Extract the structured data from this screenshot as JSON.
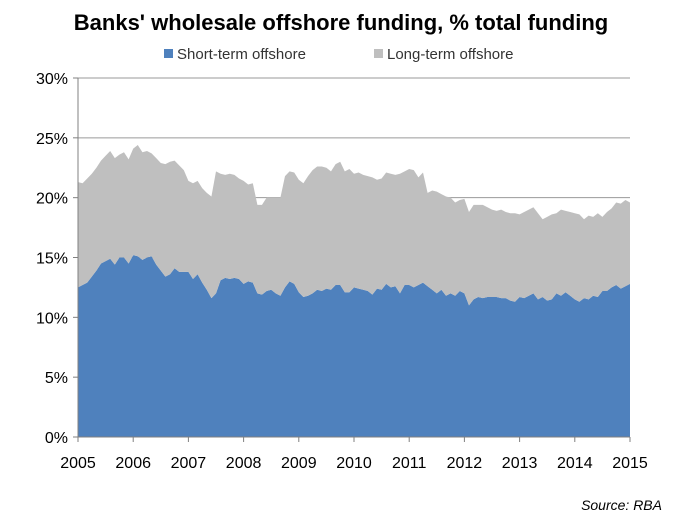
{
  "chart_data": {
    "type": "area",
    "stacked": true,
    "title": "Banks' wholesale offshore funding, % total funding",
    "xlabel": "",
    "ylabel": "",
    "x_tick_labels": [
      "2005",
      "2006",
      "2007",
      "2008",
      "2009",
      "2010",
      "2011",
      "2012",
      "2013",
      "2014",
      "2015"
    ],
    "xlim": [
      2005,
      2015
    ],
    "y_tick_labels": [
      "0%",
      "5%",
      "10%",
      "15%",
      "20%",
      "25%",
      "30%"
    ],
    "ylim": [
      0,
      30
    ],
    "grid": "horizontal",
    "legend_position": "top",
    "source": "Source: RBA",
    "x": [
      2005.0,
      2005.083,
      2005.167,
      2005.25,
      2005.333,
      2005.417,
      2005.5,
      2005.583,
      2005.667,
      2005.75,
      2005.833,
      2005.917,
      2006.0,
      2006.083,
      2006.167,
      2006.25,
      2006.333,
      2006.417,
      2006.5,
      2006.583,
      2006.667,
      2006.75,
      2006.833,
      2006.917,
      2007.0,
      2007.083,
      2007.167,
      2007.25,
      2007.333,
      2007.417,
      2007.5,
      2007.583,
      2007.667,
      2007.75,
      2007.833,
      2007.917,
      2008.0,
      2008.083,
      2008.167,
      2008.25,
      2008.333,
      2008.417,
      2008.5,
      2008.583,
      2008.667,
      2008.75,
      2008.833,
      2008.917,
      2009.0,
      2009.083,
      2009.167,
      2009.25,
      2009.333,
      2009.417,
      2009.5,
      2009.583,
      2009.667,
      2009.75,
      2009.833,
      2009.917,
      2010.0,
      2010.083,
      2010.167,
      2010.25,
      2010.333,
      2010.417,
      2010.5,
      2010.583,
      2010.667,
      2010.75,
      2010.833,
      2010.917,
      2011.0,
      2011.083,
      2011.167,
      2011.25,
      2011.333,
      2011.417,
      2011.5,
      2011.583,
      2011.667,
      2011.75,
      2011.833,
      2011.917,
      2012.0,
      2012.083,
      2012.167,
      2012.25,
      2012.333,
      2012.417,
      2012.5,
      2012.583,
      2012.667,
      2012.75,
      2012.833,
      2012.917,
      2013.0,
      2013.083,
      2013.167,
      2013.25,
      2013.333,
      2013.417,
      2013.5,
      2013.583,
      2013.667,
      2013.75,
      2013.833,
      2013.917,
      2014.0,
      2014.083,
      2014.167,
      2014.25,
      2014.333,
      2014.417,
      2014.5,
      2014.583,
      2014.667,
      2014.75,
      2014.833,
      2014.917,
      2015.0
    ],
    "series": [
      {
        "name": "Short-term offshore",
        "color": "#4f81bd",
        "values": [
          12.5,
          12.7,
          12.9,
          13.4,
          13.9,
          14.5,
          14.7,
          14.9,
          14.4,
          15.0,
          15.0,
          14.5,
          15.2,
          15.1,
          14.8,
          15.0,
          15.1,
          14.4,
          13.9,
          13.4,
          13.6,
          14.1,
          13.8,
          13.8,
          13.8,
          13.2,
          13.6,
          12.9,
          12.3,
          11.6,
          12.0,
          13.1,
          13.3,
          13.2,
          13.3,
          13.2,
          12.8,
          13.0,
          12.9,
          12.0,
          11.9,
          12.2,
          12.3,
          12.0,
          11.8,
          12.5,
          13.0,
          12.8,
          12.1,
          11.7,
          11.8,
          12.0,
          12.3,
          12.2,
          12.4,
          12.3,
          12.7,
          12.7,
          12.1,
          12.1,
          12.5,
          12.4,
          12.3,
          12.2,
          11.9,
          12.4,
          12.3,
          12.8,
          12.5,
          12.6,
          12.0,
          12.7,
          12.7,
          12.5,
          12.7,
          12.9,
          12.6,
          12.3,
          12.0,
          12.3,
          11.8,
          12.0,
          11.8,
          12.2,
          12.0,
          11.0,
          11.5,
          11.7,
          11.6,
          11.7,
          11.7,
          11.7,
          11.6,
          11.6,
          11.4,
          11.3,
          11.7,
          11.6,
          11.8,
          12.0,
          11.5,
          11.7,
          11.4,
          11.5,
          12.0,
          11.8,
          12.1,
          11.8,
          11.5,
          11.3,
          11.6,
          11.5,
          11.8,
          11.7,
          12.2,
          12.2,
          12.5,
          12.7,
          12.4,
          12.6,
          12.8
        ],
        "total_visible_as_stack_top": true
      },
      {
        "name": "Long-term offshore",
        "color": "#bfbfbf",
        "values": [
          8.8,
          8.5,
          8.7,
          8.6,
          8.6,
          8.6,
          8.8,
          9.0,
          8.9,
          8.6,
          8.8,
          8.7,
          8.9,
          9.3,
          9.0,
          8.9,
          8.6,
          8.9,
          9.0,
          9.4,
          9.4,
          9.0,
          8.9,
          8.5,
          7.6,
          8.0,
          7.8,
          7.9,
          8.1,
          8.5,
          10.2,
          8.9,
          8.6,
          8.8,
          8.6,
          8.4,
          8.6,
          8.1,
          8.3,
          7.4,
          7.5,
          7.8,
          7.7,
          8.0,
          8.2,
          9.3,
          9.2,
          9.3,
          9.4,
          9.5,
          10.0,
          10.3,
          10.3,
          10.4,
          10.1,
          9.9,
          10.1,
          10.3,
          10.1,
          10.3,
          9.5,
          9.7,
          9.6,
          9.6,
          9.8,
          9.1,
          9.3,
          9.3,
          9.5,
          9.3,
          10.0,
          9.5,
          9.7,
          9.8,
          9.0,
          9.2,
          7.8,
          8.3,
          8.5,
          8.0,
          8.3,
          8.0,
          7.8,
          7.6,
          7.9,
          7.8,
          7.9,
          7.7,
          7.8,
          7.5,
          7.3,
          7.2,
          7.4,
          7.2,
          7.3,
          7.4,
          6.9,
          7.2,
          7.2,
          7.2,
          7.2,
          6.5,
          7.0,
          7.1,
          6.7,
          7.2,
          6.8,
          7.0,
          7.2,
          7.3,
          6.6,
          7.0,
          6.6,
          7.0,
          6.2,
          6.6,
          6.6,
          6.9,
          7.1,
          7.2,
          6.8
        ]
      }
    ]
  }
}
